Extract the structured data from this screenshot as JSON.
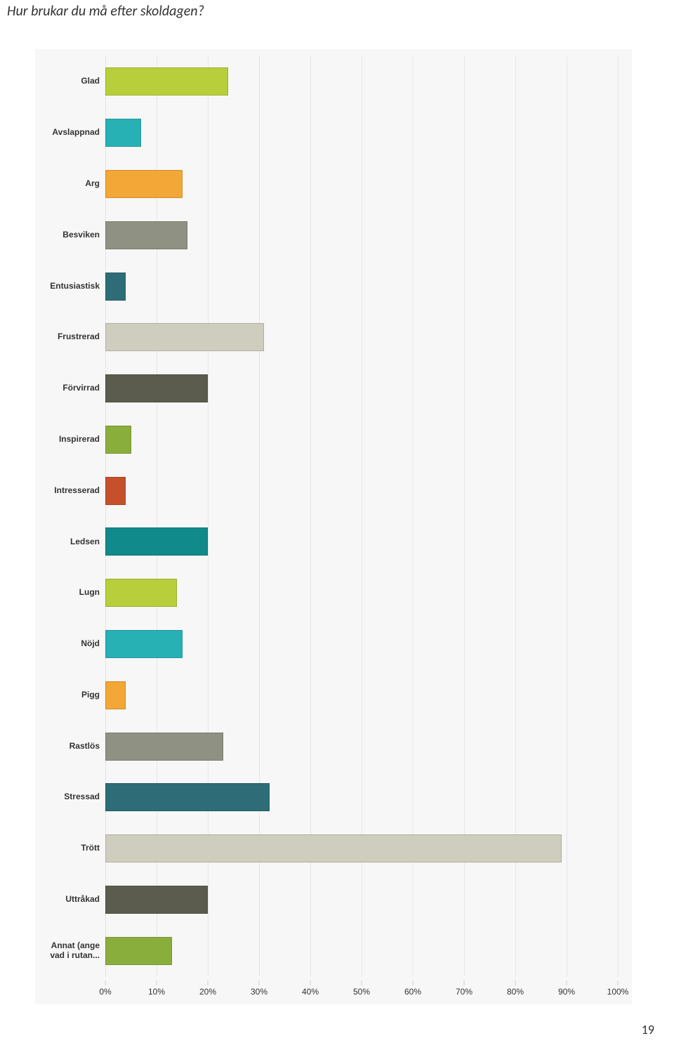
{
  "page": {
    "title": "Hur brukar du må efter skoldagen?",
    "pageNumber": "19",
    "title_fontsize": 20,
    "title_color": "#333333",
    "pageNumber_fontsize": 18
  },
  "chart": {
    "type": "bar-horizontal",
    "background_color": "#f7f7f7",
    "grid_color": "#e6e6e6",
    "axis_color": "#cfcfcf",
    "x": {
      "min": 0,
      "max": 100,
      "tick_step": 10,
      "tick_suffix": "%",
      "tick_fontsize": 12,
      "tick_color": "#333333"
    },
    "ylabel_fontsize": 12,
    "ylabel_fontweight": "bold",
    "ylabel_color": "#333333",
    "bar_thickness_ratio": 0.55,
    "bar_border_color": "rgba(0,0,0,0.15)",
    "categories": [
      {
        "label": "Glad",
        "value": 24,
        "color": "#b8ce3a"
      },
      {
        "label": "Avslappnad",
        "value": 7,
        "color": "#28b1b5"
      },
      {
        "label": "Arg",
        "value": 15,
        "color": "#f3a736"
      },
      {
        "label": "Besviken",
        "value": 16,
        "color": "#8f9182"
      },
      {
        "label": "Entusiastisk",
        "value": 4,
        "color": "#2e6d78"
      },
      {
        "label": "Frustrerad",
        "value": 31,
        "color": "#cfcdbd"
      },
      {
        "label": "Förvirrad",
        "value": 20,
        "color": "#5c5c4e"
      },
      {
        "label": "Inspirerad",
        "value": 5,
        "color": "#8aae3c"
      },
      {
        "label": "Intresserad",
        "value": 4,
        "color": "#c6502b"
      },
      {
        "label": "Ledsen",
        "value": 20,
        "color": "#108a8a"
      },
      {
        "label": "Lugn",
        "value": 14,
        "color": "#b8ce3a"
      },
      {
        "label": "Nöjd",
        "value": 15,
        "color": "#28b1b5"
      },
      {
        "label": "Pigg",
        "value": 4,
        "color": "#f3a736"
      },
      {
        "label": "Rastlös",
        "value": 23,
        "color": "#8f9182"
      },
      {
        "label": "Stressad",
        "value": 32,
        "color": "#2e6d78"
      },
      {
        "label": "Trött",
        "value": 89,
        "color": "#cfcdbd"
      },
      {
        "label": "Uttråkad",
        "value": 20,
        "color": "#5c5c4e"
      },
      {
        "label": "Annat (ange vad i rutan...",
        "value": 13,
        "color": "#8aae3c"
      }
    ]
  }
}
